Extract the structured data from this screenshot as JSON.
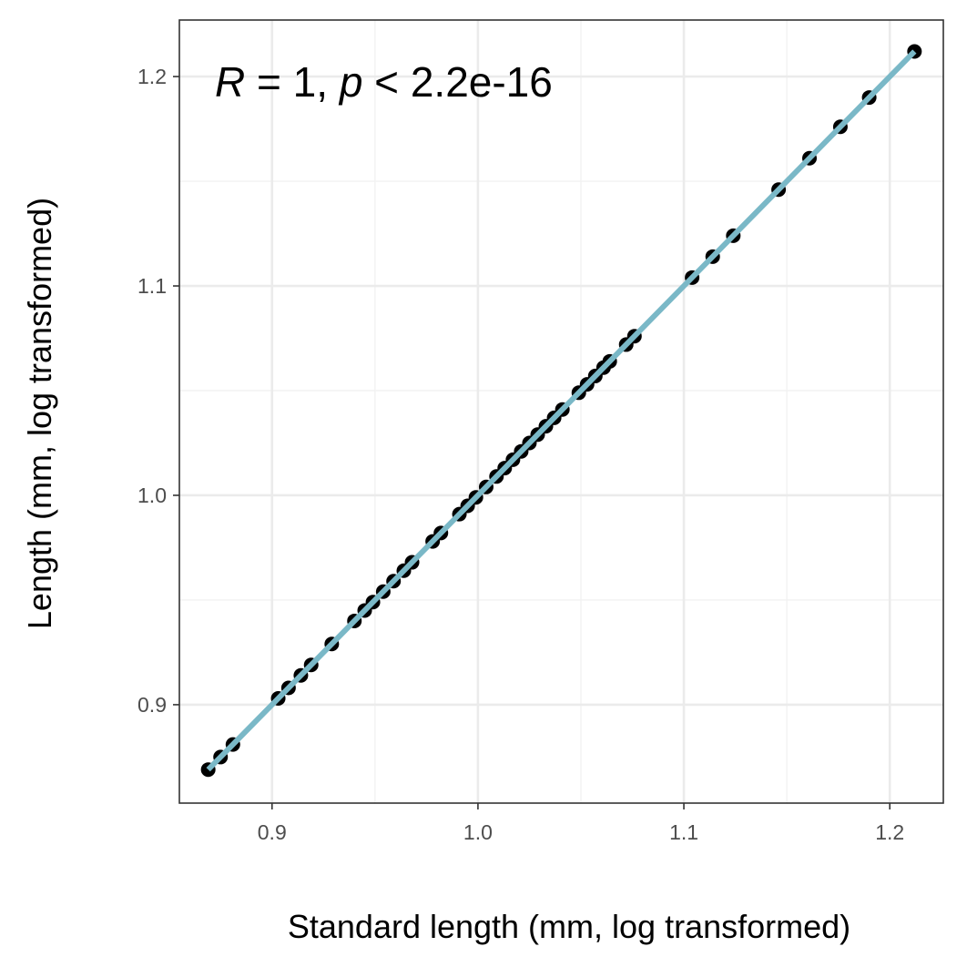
{
  "chart_data": {
    "type": "scatter",
    "title": "",
    "xlabel": "Standard length (mm, log transformed)",
    "ylabel": "Length (mm, log transformed)",
    "xlim": [
      0.855,
      1.226
    ],
    "ylim": [
      0.853,
      1.227
    ],
    "x_ticks": [
      {
        "value": 0.9,
        "label": "0.9"
      },
      {
        "value": 1.0,
        "label": "1.0"
      },
      {
        "value": 1.1,
        "label": "1.1"
      },
      {
        "value": 1.2,
        "label": "1.2"
      }
    ],
    "y_ticks": [
      {
        "value": 0.9,
        "label": "0.9"
      },
      {
        "value": 1.0,
        "label": "1.0"
      },
      {
        "value": 1.1,
        "label": "1.1"
      },
      {
        "value": 1.2,
        "label": "1.2"
      }
    ],
    "grid": true,
    "annotation": {
      "r_symbol": "R",
      "r_text": " = 1, ",
      "p_symbol": "p",
      "p_text": " < 2.2e-16"
    },
    "point_color": "#000000",
    "line_color": "#7ab8c7",
    "fit_line": {
      "x": [
        0.869,
        1.212
      ],
      "y": [
        0.869,
        1.212
      ]
    },
    "points": {
      "x": [
        0.869,
        0.875,
        0.881,
        0.903,
        0.908,
        0.914,
        0.919,
        0.929,
        0.94,
        0.945,
        0.949,
        0.954,
        0.959,
        0.964,
        0.968,
        0.978,
        0.982,
        0.991,
        0.995,
        0.999,
        1.004,
        1.009,
        1.013,
        1.017,
        1.021,
        1.025,
        1.029,
        1.033,
        1.037,
        1.041,
        1.049,
        1.053,
        1.057,
        1.061,
        1.064,
        1.072,
        1.076,
        1.104,
        1.114,
        1.124,
        1.146,
        1.161,
        1.176,
        1.19,
        1.212
      ],
      "y": [
        0.869,
        0.875,
        0.881,
        0.903,
        0.908,
        0.914,
        0.919,
        0.929,
        0.94,
        0.945,
        0.949,
        0.954,
        0.959,
        0.964,
        0.968,
        0.978,
        0.982,
        0.991,
        0.995,
        0.999,
        1.004,
        1.009,
        1.013,
        1.017,
        1.021,
        1.025,
        1.029,
        1.033,
        1.037,
        1.041,
        1.049,
        1.053,
        1.057,
        1.061,
        1.064,
        1.072,
        1.076,
        1.104,
        1.114,
        1.124,
        1.146,
        1.161,
        1.176,
        1.19,
        1.212
      ]
    }
  }
}
